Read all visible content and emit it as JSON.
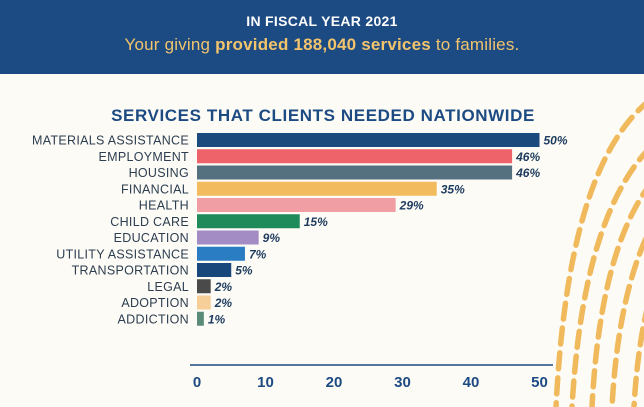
{
  "header": {
    "fiscal_title": "IN FISCAL YEAR 2021",
    "sub_prefix": "Your giving ",
    "sub_highlight": "provided 188,040 services",
    "sub_suffix": " to families."
  },
  "colors": {
    "banner_bg": "#1c4a82",
    "banner_accent": "#f2c46c",
    "title_text": "#1c4a82",
    "label_text": "#2c3e50",
    "decor_gold": "#f0b95c"
  },
  "chart_data": {
    "type": "bar",
    "orientation": "horizontal",
    "title": "SERVICES THAT CLIENTS NEEDED NATIONWIDE",
    "xlabel": "",
    "ylabel": "",
    "xlim": [
      0,
      50
    ],
    "xticks": [
      "0",
      "10",
      "20",
      "30",
      "40",
      "50"
    ],
    "grid": false,
    "categories": [
      "MATERIALS ASSISTANCE",
      "EMPLOYMENT",
      "HOUSING",
      "FINANCIAL",
      "HEALTH",
      "CHILD CARE",
      "EDUCATION",
      "UTILITY ASSISTANCE",
      "TRANSPORTATION",
      "LEGAL",
      "ADOPTION",
      "ADDICTION"
    ],
    "values": [
      50,
      46,
      46,
      35,
      29,
      15,
      9,
      7,
      5,
      2,
      2,
      1
    ],
    "value_labels": [
      "50%",
      "46%",
      "46%",
      "35%",
      "29%",
      "15%",
      "9%",
      "7%",
      "5%",
      "2%",
      "2%",
      "1%"
    ],
    "bar_colors": [
      "#1c4a7c",
      "#ee636a",
      "#55707f",
      "#f2bc5e",
      "#f09ea4",
      "#1f8a5a",
      "#a38bc4",
      "#2a7cc3",
      "#17477b",
      "#4a4a4a",
      "#f5cf97",
      "#5a8a78"
    ]
  }
}
